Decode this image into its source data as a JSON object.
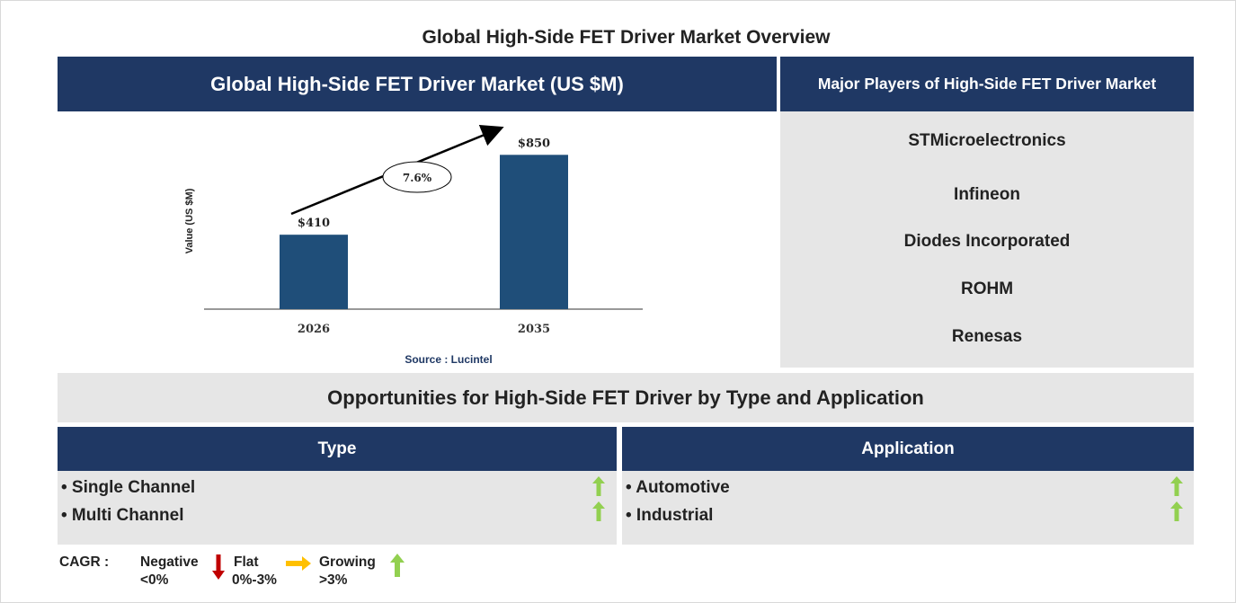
{
  "main_title": "Global High-Side FET Driver Market Overview",
  "market_panel": {
    "title": "Global High-Side FET Driver Market (US $M)",
    "source": "Source : Lucintel"
  },
  "chart_data": {
    "type": "bar",
    "categories": [
      "2026",
      "2035"
    ],
    "values": [
      410,
      850
    ],
    "value_labels": [
      "$410",
      "$850"
    ],
    "ylabel": "Value (US $M)",
    "ylim": [
      0,
      1000
    ],
    "cagr_label": "7.6%",
    "grid": false,
    "bar_color": "#1f4e79"
  },
  "players_panel": {
    "title": "Major Players of High-Side FET Driver Market",
    "players": [
      "STMicroelectronics",
      "Infineon",
      "Diodes Incorporated",
      "ROHM",
      "Renesas"
    ]
  },
  "opportunities": {
    "title": "Opportunities for High-Side FET Driver by Type and Application",
    "type": {
      "title": "Type",
      "items": [
        {
          "label": "• Single Channel",
          "trend": "growing"
        },
        {
          "label": "• Multi Channel",
          "trend": "growing"
        }
      ]
    },
    "application": {
      "title": "Application",
      "items": [
        {
          "label": "• Automotive",
          "trend": "growing"
        },
        {
          "label": "• Industrial",
          "trend": "growing"
        }
      ]
    }
  },
  "legend": {
    "cagr_label": "CAGR  :",
    "negative": {
      "name": "Negative",
      "range": "<0%",
      "icon": "down-arrow-icon",
      "color": "#c00000"
    },
    "flat": {
      "name": "Flat",
      "range": "0%-3%",
      "icon": "right-arrow-icon",
      "color": "#ffc000"
    },
    "growing": {
      "name": "Growing",
      "range": ">3%",
      "icon": "up-arrow-icon",
      "color": "#92d050"
    }
  }
}
